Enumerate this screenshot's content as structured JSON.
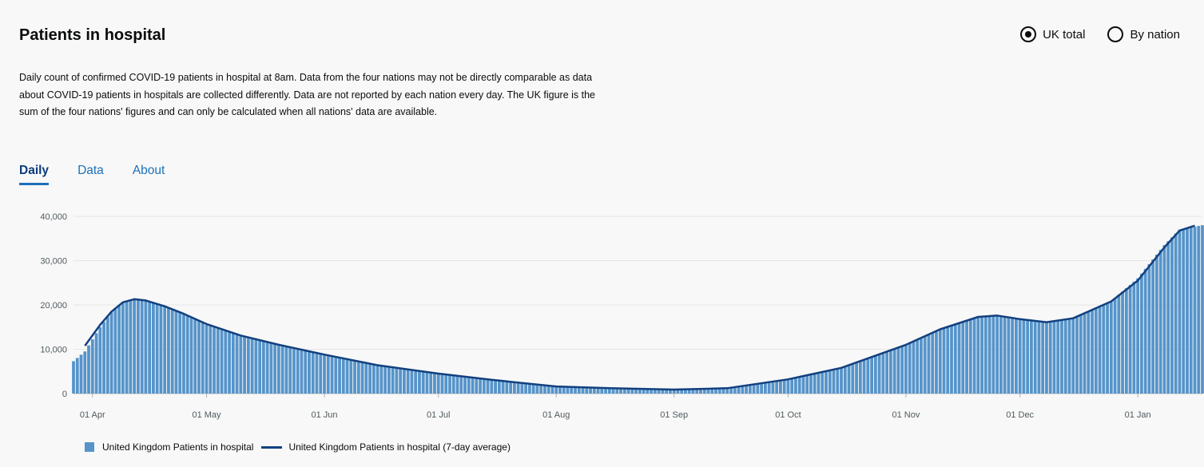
{
  "card": {
    "title": "Patients in hospital",
    "description": "Daily count of confirmed COVID-19 patients in hospital at 8am. Data from the four nations may not be directly comparable as data about COVID-19 patients in hospitals are collected differently. Data are not reported by each nation every day. The UK figure is the sum of the four nations' figures and can only be calculated when all nations' data are available.",
    "radios": [
      {
        "label": "UK total",
        "selected": true
      },
      {
        "label": "By nation",
        "selected": false
      }
    ],
    "tabs": [
      {
        "label": "Daily",
        "active": true
      },
      {
        "label": "Data",
        "active": false
      },
      {
        "label": "About",
        "active": false
      }
    ]
  },
  "chart_data": {
    "type": "bar",
    "title": "",
    "xlabel": "",
    "ylabel": "",
    "ylim": [
      0,
      40000
    ],
    "yticks": [
      0,
      10000,
      20000,
      30000,
      40000
    ],
    "ytick_labels": [
      "0",
      "10,000",
      "20,000",
      "30,000",
      "40,000"
    ],
    "x_range": [
      "2020-03-27",
      "2021-01-18"
    ],
    "xticks": [
      "2020-04-01",
      "2020-05-01",
      "2020-06-01",
      "2020-07-01",
      "2020-08-01",
      "2020-09-01",
      "2020-10-01",
      "2020-11-01",
      "2020-12-01",
      "2021-01-01"
    ],
    "xtick_labels": [
      "01 Apr",
      "01 May",
      "01 Jun",
      "01 Jul",
      "01 Aug",
      "01 Sep",
      "01 Oct",
      "01 Nov",
      "01 Dec",
      "01 Jan"
    ],
    "grid": true,
    "legend": "bottom-left",
    "colors": {
      "bars": "#5694ca",
      "line": "#12407f"
    },
    "series": [
      {
        "name": "United Kingdom Patients in hospital",
        "kind": "bar",
        "points": [
          [
            "2020-03-27",
            7300
          ],
          [
            "2020-03-30",
            9500
          ],
          [
            "2020-04-03",
            15000
          ],
          [
            "2020-04-06",
            18500
          ],
          [
            "2020-04-09",
            20500
          ],
          [
            "2020-04-12",
            21300
          ],
          [
            "2020-04-15",
            21000
          ],
          [
            "2020-04-20",
            19700
          ],
          [
            "2020-04-25",
            18000
          ],
          [
            "2020-05-01",
            15500
          ],
          [
            "2020-05-10",
            13000
          ],
          [
            "2020-05-20",
            11000
          ],
          [
            "2020-06-01",
            8800
          ],
          [
            "2020-06-15",
            6400
          ],
          [
            "2020-07-01",
            4500
          ],
          [
            "2020-07-15",
            3100
          ],
          [
            "2020-08-01",
            1500
          ],
          [
            "2020-08-15",
            1200
          ],
          [
            "2020-09-01",
            900
          ],
          [
            "2020-09-15",
            1200
          ],
          [
            "2020-10-01",
            3300
          ],
          [
            "2020-10-15",
            5800
          ],
          [
            "2020-11-01",
            11000
          ],
          [
            "2020-11-10",
            14500
          ],
          [
            "2020-11-20",
            17300
          ],
          [
            "2020-11-25",
            17600
          ],
          [
            "2020-12-01",
            16700
          ],
          [
            "2020-12-08",
            16000
          ],
          [
            "2020-12-15",
            17200
          ],
          [
            "2020-12-25",
            20800
          ],
          [
            "2021-01-01",
            26000
          ],
          [
            "2021-01-08",
            33500
          ],
          [
            "2021-01-12",
            37000
          ],
          [
            "2021-01-18",
            38000
          ]
        ]
      },
      {
        "name": "United Kingdom Patients in hospital (7-day average)",
        "kind": "line",
        "points": [
          [
            "2020-03-30",
            10800
          ],
          [
            "2020-04-03",
            15500
          ],
          [
            "2020-04-06",
            18500
          ],
          [
            "2020-04-09",
            20600
          ],
          [
            "2020-04-12",
            21300
          ],
          [
            "2020-04-15",
            21000
          ],
          [
            "2020-04-20",
            19700
          ],
          [
            "2020-04-25",
            18000
          ],
          [
            "2020-05-01",
            15700
          ],
          [
            "2020-05-10",
            13100
          ],
          [
            "2020-05-20",
            11000
          ],
          [
            "2020-06-01",
            8800
          ],
          [
            "2020-06-15",
            6400
          ],
          [
            "2020-07-01",
            4500
          ],
          [
            "2020-07-15",
            3100
          ],
          [
            "2020-08-01",
            1600
          ],
          [
            "2020-08-15",
            1200
          ],
          [
            "2020-09-01",
            900
          ],
          [
            "2020-09-15",
            1200
          ],
          [
            "2020-10-01",
            3200
          ],
          [
            "2020-10-15",
            5800
          ],
          [
            "2020-11-01",
            11000
          ],
          [
            "2020-11-10",
            14500
          ],
          [
            "2020-11-20",
            17300
          ],
          [
            "2020-11-25",
            17600
          ],
          [
            "2020-12-01",
            16800
          ],
          [
            "2020-12-08",
            16100
          ],
          [
            "2020-12-15",
            17000
          ],
          [
            "2020-12-25",
            20800
          ],
          [
            "2021-01-01",
            25500
          ],
          [
            "2021-01-08",
            33000
          ],
          [
            "2021-01-12",
            36800
          ],
          [
            "2021-01-16",
            37900
          ]
        ]
      }
    ]
  }
}
